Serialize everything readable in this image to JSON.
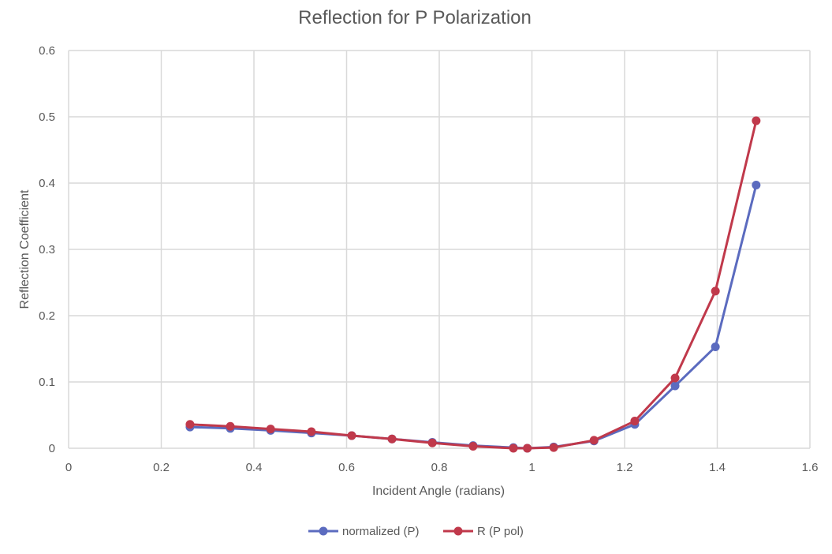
{
  "chart_data": {
    "type": "scatter",
    "title": "Reflection for P Polarization",
    "xlabel": "Incident Angle (radians)",
    "ylabel": "Reflection Coefficient",
    "xlim": [
      0,
      1.6
    ],
    "ylim": [
      0,
      0.6
    ],
    "xticks": [
      "0",
      "0.2",
      "0.4",
      "0.6",
      "0.8",
      "1",
      "1.2",
      "1.4",
      "1.6"
    ],
    "yticks": [
      "0",
      "0.1",
      "0.2",
      "0.3",
      "0.4",
      "0.5",
      "0.6"
    ],
    "grid": true,
    "legend_position": "bottom",
    "x": [
      0.262,
      0.349,
      0.436,
      0.524,
      0.611,
      0.698,
      0.785,
      0.873,
      0.96,
      0.99,
      1.047,
      1.134,
      1.222,
      1.309,
      1.396,
      1.484
    ],
    "series": [
      {
        "name": "normalized (P)",
        "color": "#5b6bbf",
        "values": [
          0.032,
          0.03,
          0.027,
          0.023,
          0.019,
          0.014,
          0.009,
          0.004,
          0.001,
          0.0,
          0.002,
          0.011,
          0.036,
          0.094,
          0.153,
          0.397
        ]
      },
      {
        "name": "R (P pol)",
        "color": "#c0394b",
        "values": [
          0.036,
          0.033,
          0.029,
          0.025,
          0.019,
          0.014,
          0.008,
          0.003,
          0.0,
          0.0,
          0.001,
          0.012,
          0.041,
          0.106,
          0.237,
          0.494
        ]
      }
    ]
  }
}
